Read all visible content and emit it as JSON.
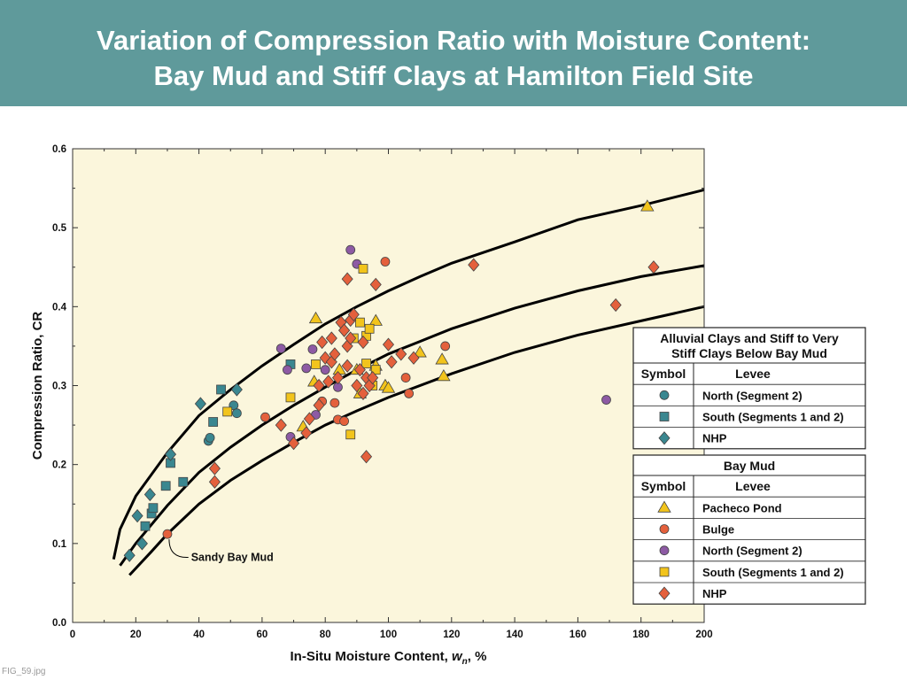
{
  "header": {
    "title_line1": "Variation of Compression Ratio with Moisture Content:",
    "title_line2": "Bay Mud and Stiff Clays at Hamilton Field Site",
    "background": "#5f9a9b"
  },
  "figure_label": "FIG_59.jpg",
  "colors": {
    "plot_background": "#fbf6dc",
    "teal": "#3a8790",
    "yellow": "#f2c41c",
    "orange": "#e4603c",
    "purple": "#8d5aa4",
    "curve": "#000000"
  },
  "chart_data": {
    "type": "scatter",
    "xlabel": "In-Situ Moisture Content, wn, %",
    "xlabel_parts": {
      "main": "In-Situ Moisture Content, ",
      "var": "w",
      "sub": "n",
      "tail": ", %"
    },
    "ylabel": "Compression Ratio, CR",
    "xlim": [
      0,
      200
    ],
    "ylim": [
      0,
      0.6
    ],
    "xticks": [
      0,
      20,
      40,
      60,
      80,
      100,
      120,
      140,
      160,
      180,
      200
    ],
    "yticks": [
      "0.0",
      "0.1",
      "0.2",
      "0.3",
      "0.4",
      "0.5",
      "0.6"
    ],
    "grid": false,
    "annotations": [
      {
        "text": "Sandy Bay Mud",
        "x": 30,
        "y": 0.112,
        "label_x": 37.5,
        "label_y": 0.078
      }
    ],
    "curves": [
      {
        "points": [
          [
            13,
            0.08
          ],
          [
            15,
            0.118
          ],
          [
            20,
            0.16
          ],
          [
            30,
            0.215
          ],
          [
            40,
            0.262
          ],
          [
            50,
            0.295
          ],
          [
            60,
            0.325
          ],
          [
            70,
            0.352
          ],
          [
            80,
            0.378
          ],
          [
            90,
            0.4
          ],
          [
            100,
            0.42
          ],
          [
            110,
            0.438
          ],
          [
            120,
            0.455
          ],
          [
            140,
            0.482
          ],
          [
            160,
            0.51
          ],
          [
            180,
            0.528
          ],
          [
            200,
            0.548
          ]
        ]
      },
      {
        "points": [
          [
            15,
            0.072
          ],
          [
            20,
            0.1
          ],
          [
            30,
            0.148
          ],
          [
            40,
            0.19
          ],
          [
            50,
            0.222
          ],
          [
            60,
            0.25
          ],
          [
            70,
            0.275
          ],
          [
            80,
            0.298
          ],
          [
            90,
            0.32
          ],
          [
            100,
            0.34
          ],
          [
            110,
            0.356
          ],
          [
            120,
            0.372
          ],
          [
            140,
            0.398
          ],
          [
            160,
            0.42
          ],
          [
            180,
            0.438
          ],
          [
            200,
            0.452
          ]
        ]
      },
      {
        "points": [
          [
            18,
            0.06
          ],
          [
            25,
            0.09
          ],
          [
            30,
            0.112
          ],
          [
            40,
            0.15
          ],
          [
            50,
            0.18
          ],
          [
            60,
            0.205
          ],
          [
            70,
            0.228
          ],
          [
            80,
            0.25
          ],
          [
            90,
            0.268
          ],
          [
            100,
            0.285
          ],
          [
            120,
            0.315
          ],
          [
            140,
            0.342
          ],
          [
            160,
            0.364
          ],
          [
            180,
            0.382
          ],
          [
            200,
            0.4
          ]
        ]
      }
    ],
    "legend_groups": [
      {
        "title_lines": [
          "Alluvial Clays and Stiff to Very",
          "Stiff Clays Below Bay Mud"
        ],
        "header_symbol": "Symbol",
        "header_levee": "Levee",
        "items": [
          {
            "name": "North (Segment 2)",
            "shape": "circle",
            "color": "#3a8790"
          },
          {
            "name": "South (Segments 1 and 2)",
            "shape": "square",
            "color": "#3a8790"
          },
          {
            "name": "NHP",
            "shape": "diamond",
            "color": "#3a8790"
          }
        ]
      },
      {
        "title_lines": [
          "Bay Mud"
        ],
        "header_symbol": "Symbol",
        "header_levee": "Levee",
        "items": [
          {
            "name": "Pacheco Pond",
            "shape": "triangle",
            "color": "#f2c41c"
          },
          {
            "name": "Bulge",
            "shape": "circle",
            "color": "#e4603c"
          },
          {
            "name": "North (Segment 2)",
            "shape": "circle",
            "color": "#8d5aa4"
          },
          {
            "name": "South (Segments 1 and 2)",
            "shape": "square",
            "color": "#f2c41c"
          },
          {
            "name": "NHP",
            "shape": "diamond",
            "color": "#e4603c"
          }
        ]
      }
    ],
    "series": [
      {
        "group": "Alluvial Clays",
        "levee": "North (Segment 2)",
        "shape": "circle",
        "color": "#3a8790",
        "x": [
          43,
          43.5,
          51,
          52
        ],
        "y": [
          0.23,
          0.234,
          0.275,
          0.265
        ]
      },
      {
        "group": "Alluvial Clays",
        "levee": "South (Segments 1 and 2)",
        "shape": "square",
        "color": "#3a8790",
        "x": [
          23,
          25,
          25.5,
          29.5,
          31,
          35,
          44.5,
          47,
          69
        ],
        "y": [
          0.122,
          0.138,
          0.145,
          0.173,
          0.202,
          0.178,
          0.254,
          0.295,
          0.327
        ]
      },
      {
        "group": "Alluvial Clays",
        "levee": "NHP",
        "shape": "diamond",
        "color": "#3a8790",
        "x": [
          18,
          20.5,
          22,
          24.5,
          31,
          40.5,
          52
        ],
        "y": [
          0.085,
          0.135,
          0.1,
          0.162,
          0.213,
          0.277,
          0.295
        ]
      },
      {
        "group": "Bay Mud",
        "levee": "Pacheco Pond",
        "shape": "triangle",
        "color": "#f2c41c",
        "x": [
          77,
          73,
          76.5,
          84.5,
          90,
          91,
          96,
          96,
          99,
          100,
          110,
          117,
          117.5,
          182
        ],
        "y": [
          0.385,
          0.248,
          0.305,
          0.32,
          0.32,
          0.29,
          0.382,
          0.325,
          0.3,
          0.297,
          0.342,
          0.333,
          0.312,
          0.527
        ]
      },
      {
        "group": "Bay Mud",
        "levee": "Bulge",
        "shape": "circle",
        "color": "#e4603c",
        "x": [
          30,
          61,
          79,
          83,
          84,
          86,
          99,
          105.5,
          106.5,
          118
        ],
        "y": [
          0.112,
          0.26,
          0.28,
          0.278,
          0.257,
          0.255,
          0.457,
          0.31,
          0.29,
          0.35
        ]
      },
      {
        "group": "Bay Mud",
        "levee": "North (Segment 2)",
        "shape": "circle",
        "color": "#8d5aa4",
        "x": [
          66,
          68,
          69,
          74,
          76,
          77,
          80,
          84,
          88,
          90,
          169
        ],
        "y": [
          0.347,
          0.32,
          0.235,
          0.322,
          0.346,
          0.263,
          0.32,
          0.298,
          0.472,
          0.454,
          0.282
        ]
      },
      {
        "group": "Bay Mud",
        "levee": "South (Segments 1 and 2)",
        "shape": "square",
        "color": "#f2c41c",
        "x": [
          49,
          69,
          77,
          88,
          89,
          91,
          92,
          93,
          93,
          94,
          95,
          96
        ],
        "y": [
          0.267,
          0.285,
          0.327,
          0.238,
          0.36,
          0.38,
          0.448,
          0.328,
          0.363,
          0.372,
          0.3,
          0.32
        ]
      },
      {
        "group": "Bay Mud",
        "levee": "NHP",
        "shape": "diamond",
        "color": "#e4603c",
        "x": [
          45,
          45,
          66,
          70,
          74,
          75,
          78,
          78,
          80,
          81,
          82,
          82,
          83,
          84,
          85,
          86,
          87,
          87,
          88,
          88,
          89,
          90,
          91,
          92,
          93,
          93,
          94,
          95,
          96,
          100,
          101,
          104,
          108,
          127,
          172,
          184,
          87,
          92,
          79,
          86
        ],
        "y": [
          0.195,
          0.178,
          0.25,
          0.227,
          0.24,
          0.258,
          0.3,
          0.275,
          0.335,
          0.305,
          0.36,
          0.33,
          0.34,
          0.31,
          0.38,
          0.37,
          0.435,
          0.35,
          0.383,
          0.36,
          0.39,
          0.3,
          0.32,
          0.355,
          0.21,
          0.31,
          0.3,
          0.31,
          0.428,
          0.352,
          0.33,
          0.34,
          0.335,
          0.453,
          0.402,
          0.45,
          0.325,
          0.29,
          0.355,
          0.37
        ]
      }
    ]
  }
}
